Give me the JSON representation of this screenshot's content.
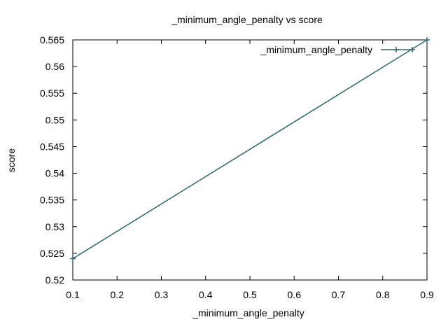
{
  "chart_data": {
    "type": "line",
    "title": "_minimum_angle_penalty vs score",
    "xlabel": "_minimum_angle_penalty",
    "ylabel": "score",
    "xlim": [
      0.1,
      0.9
    ],
    "ylim": [
      0.52,
      0.565
    ],
    "x_ticks": [
      "0.1",
      "0.2",
      "0.3",
      "0.4",
      "0.5",
      "0.6",
      "0.7",
      "0.8",
      "0.9"
    ],
    "y_ticks": [
      "0.52",
      "0.525",
      "0.53",
      "0.535",
      "0.54",
      "0.545",
      "0.55",
      "0.555",
      "0.56",
      "0.565"
    ],
    "grid": false,
    "legend_position": "top-right",
    "series": [
      {
        "name": "_minimum_angle_penalty",
        "color": "#2e6b68",
        "marker": "plus",
        "x": [
          0.1,
          0.9
        ],
        "y": [
          0.524,
          0.565
        ]
      }
    ]
  }
}
